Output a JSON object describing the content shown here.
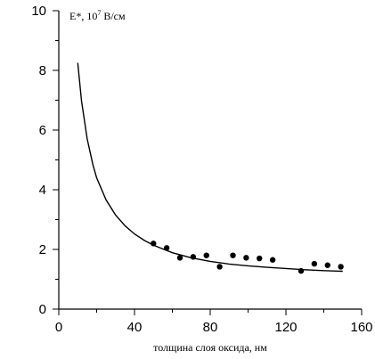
{
  "chart_data": {
    "type": "scatter",
    "title": "",
    "xlabel": "толщина слоя оксида, нм",
    "ylabel": "",
    "unit_label_prefix": "E*, 10",
    "unit_label_exp": "7",
    "unit_label_suffix": " В/см",
    "xlim": [
      0,
      160
    ],
    "ylim": [
      0,
      10
    ],
    "x_ticks": [
      0,
      40,
      80,
      120,
      160
    ],
    "y_ticks": [
      0,
      2,
      4,
      6,
      8,
      10
    ],
    "x_tick_labels": [
      "0",
      "40",
      "80",
      "120",
      "160"
    ],
    "y_tick_labels": [
      "0",
      "2",
      "4",
      "6",
      "8",
      "10"
    ],
    "grid": false,
    "series": [
      {
        "kind": "points",
        "x": [
          50,
          57,
          64,
          71,
          78,
          85,
          92,
          99,
          106,
          113,
          128,
          135,
          142,
          149
        ],
        "y": [
          2.2,
          2.05,
          1.72,
          1.75,
          1.8,
          1.42,
          1.8,
          1.72,
          1.7,
          1.65,
          1.28,
          1.52,
          1.47,
          1.42
        ]
      },
      {
        "kind": "curve",
        "x": [
          10,
          12,
          15,
          18,
          20,
          25,
          30,
          35,
          40,
          45,
          50,
          60,
          70,
          80,
          90,
          100,
          110,
          120,
          130,
          140,
          150
        ],
        "y": [
          8.25,
          6.98,
          5.7,
          4.84,
          4.4,
          3.66,
          3.15,
          2.79,
          2.52,
          2.31,
          2.14,
          1.89,
          1.72,
          1.6,
          1.51,
          1.45,
          1.4,
          1.36,
          1.32,
          1.29,
          1.27
        ]
      }
    ]
  }
}
